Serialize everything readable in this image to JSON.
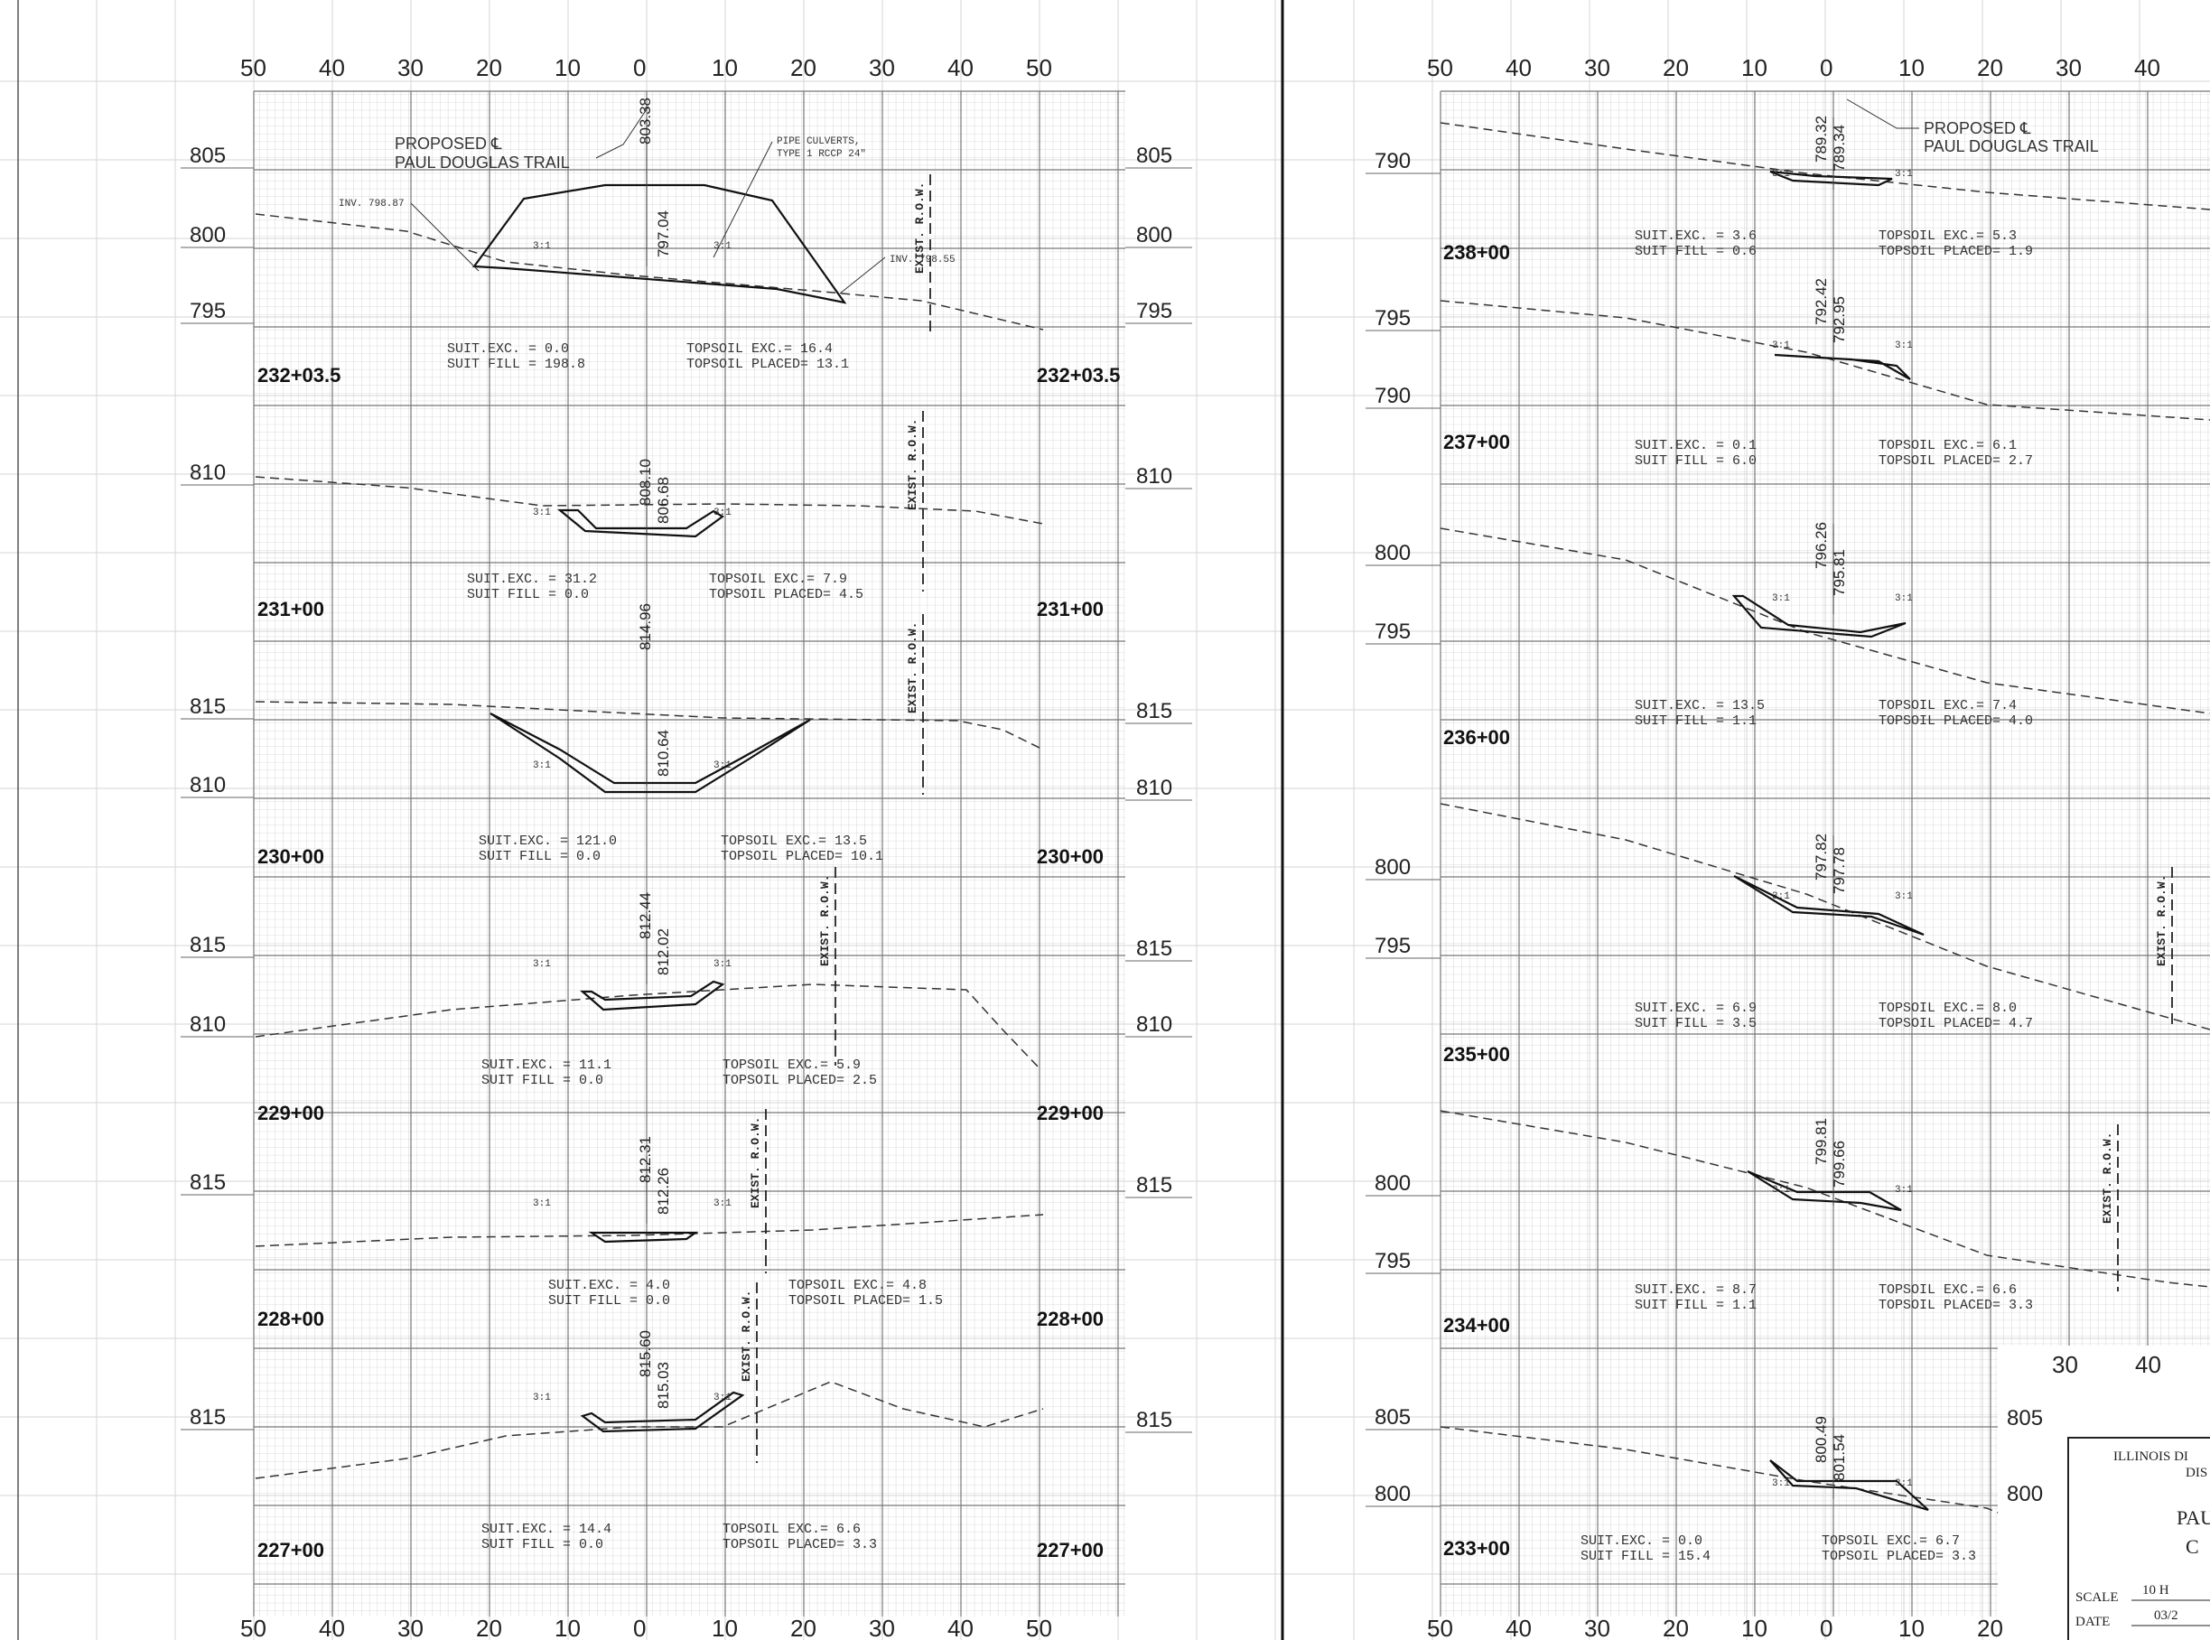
{
  "sheet": {
    "left_axis": [
      "50",
      "40",
      "30",
      "20",
      "10",
      "0",
      "10",
      "20",
      "30",
      "40",
      "50"
    ],
    "right_axis_top": [
      "50",
      "40",
      "30",
      "20",
      "10",
      "0",
      "10",
      "20",
      "30",
      "40"
    ],
    "right_axis_bottom": [
      "50",
      "40",
      "30",
      "20",
      "10",
      "0",
      "10",
      "20"
    ],
    "inset_axis": [
      "30",
      "40"
    ],
    "inset_elev": [
      "805",
      "800"
    ]
  },
  "left_column": {
    "callout": {
      "line1": "PROPOSED ℄",
      "line2": "PAUL DOUGLAS TRAIL"
    },
    "pipe_note": {
      "line1": "PIPE CULVERTS,",
      "line2": "TYPE 1 RCCP 24\""
    },
    "inv_left": "INV. 798.87",
    "inv_right": "INV. 798.55",
    "sections": [
      {
        "station": "232+03.5",
        "elev_labels": [
          "805",
          "800",
          "795"
        ],
        "cl_upper": "803.38",
        "cl_lower": "797.04",
        "suit_exc": "SUIT.EXC. = 0.0",
        "suit_fill": "SUIT FILL = 198.8",
        "top_exc": "TOPSOIL EXC.= 16.4",
        "top_placed": "TOPSOIL PLACED= 13.1",
        "row": "EXIST. R.O.W."
      },
      {
        "station": "231+00",
        "elev_labels": [
          "810"
        ],
        "cl_upper": "808.10",
        "cl_lower": "806.68",
        "suit_exc": "SUIT.EXC. = 31.2",
        "suit_fill": "SUIT FILL = 0.0",
        "top_exc": "TOPSOIL EXC.= 7.9",
        "top_placed": "TOPSOIL PLACED= 4.5",
        "row": "EXIST. R.O.W."
      },
      {
        "station": "230+00",
        "elev_labels": [
          "815",
          "810"
        ],
        "cl_upper": "814.96",
        "cl_lower": "810.64",
        "suit_exc": "SUIT.EXC. = 121.0",
        "suit_fill": "SUIT FILL = 0.0",
        "top_exc": "TOPSOIL EXC.= 13.5",
        "top_placed": "TOPSOIL PLACED= 10.1",
        "row": "EXIST. R.O.W."
      },
      {
        "station": "229+00",
        "elev_labels": [
          "815",
          "810"
        ],
        "cl_upper": "812.44",
        "cl_lower": "812.02",
        "suit_exc": "SUIT.EXC. = 11.1",
        "suit_fill": "SUIT FILL = 0.0",
        "top_exc": "TOPSOIL EXC.= 5.9",
        "top_placed": "TOPSOIL PLACED= 2.5",
        "row": "EXIST. R.O.W."
      },
      {
        "station": "228+00",
        "elev_labels": [
          "815"
        ],
        "cl_upper": "812.31",
        "cl_lower": "812.26",
        "suit_exc": "SUIT.EXC. = 4.0",
        "suit_fill": "SUIT FILL = 0.0",
        "top_exc": "TOPSOIL EXC.= 4.8",
        "top_placed": "TOPSOIL PLACED= 1.5",
        "row": "EXIST. R.O.W."
      },
      {
        "station": "227+00",
        "elev_labels": [
          "815"
        ],
        "cl_upper": "815.60",
        "cl_lower": "815.03",
        "suit_exc": "SUIT.EXC. = 14.4",
        "suit_fill": "SUIT FILL = 0.0",
        "top_exc": "TOPSOIL EXC.= 6.6",
        "top_placed": "TOPSOIL PLACED= 3.3",
        "row": "EXIST. R.O.W."
      }
    ]
  },
  "right_column": {
    "callout": {
      "line1": "PROPOSED ℄",
      "line2": "PAUL DOUGLAS TRAIL"
    },
    "sections": [
      {
        "station": "238+00",
        "elev_labels": [
          "790"
        ],
        "cl_upper": "789.32",
        "cl_lower": "789.34",
        "suit_exc": "SUIT.EXC. = 3.6",
        "suit_fill": "SUIT FILL = 0.6",
        "top_exc": "TOPSOIL EXC.= 5.3",
        "top_placed": "TOPSOIL PLACED= 1.9"
      },
      {
        "station": "237+00",
        "elev_labels": [
          "795",
          "790"
        ],
        "cl_upper": "792.42",
        "cl_lower": "792.95",
        "suit_exc": "SUIT.EXC. = 0.1",
        "suit_fill": "SUIT FILL = 6.0",
        "top_exc": "TOPSOIL EXC.= 6.1",
        "top_placed": "TOPSOIL PLACED= 2.7"
      },
      {
        "station": "236+00",
        "elev_labels": [
          "800",
          "795"
        ],
        "cl_upper": "796.26",
        "cl_lower": "795.81",
        "suit_exc": "SUIT.EXC. = 13.5",
        "suit_fill": "SUIT FILL = 1.1",
        "top_exc": "TOPSOIL EXC.= 7.4",
        "top_placed": "TOPSOIL PLACED= 4.0"
      },
      {
        "station": "235+00",
        "elev_labels": [
          "800",
          "795"
        ],
        "cl_upper": "797.82",
        "cl_lower": "797.78",
        "suit_exc": "SUIT.EXC. = 6.9",
        "suit_fill": "SUIT FILL = 3.5",
        "top_exc": "TOPSOIL EXC.= 8.0",
        "top_placed": "TOPSOIL PLACED= 4.7",
        "row": "EXIST. R.O.W."
      },
      {
        "station": "234+00",
        "elev_labels": [
          "800",
          "795"
        ],
        "cl_upper": "799.81",
        "cl_lower": "799.66",
        "suit_exc": "SUIT.EXC. = 8.7",
        "suit_fill": "SUIT FILL = 1.1",
        "top_exc": "TOPSOIL EXC.= 6.6",
        "top_placed": "TOPSOIL PLACED= 3.3",
        "row": "EXIST. R.O.W."
      },
      {
        "station": "233+00",
        "elev_labels": [
          "805",
          "800"
        ],
        "cl_upper": "800.49",
        "cl_lower": "801.54",
        "suit_exc": "SUIT.EXC. = 0.0",
        "suit_fill": "SUIT FILL = 15.4",
        "top_exc": "TOPSOIL EXC.= 6.7",
        "top_placed": "TOPSOIL PLACED= 3.3"
      }
    ]
  },
  "title_block": {
    "line1": "ILLINOIS DI",
    "line2": "DIS",
    "line3": "PAU",
    "line4": "C",
    "scale_label": "SCALE",
    "scale_value": "10 H",
    "date_label": "DATE",
    "date_value": "03/2"
  },
  "slope_label": "3:1"
}
